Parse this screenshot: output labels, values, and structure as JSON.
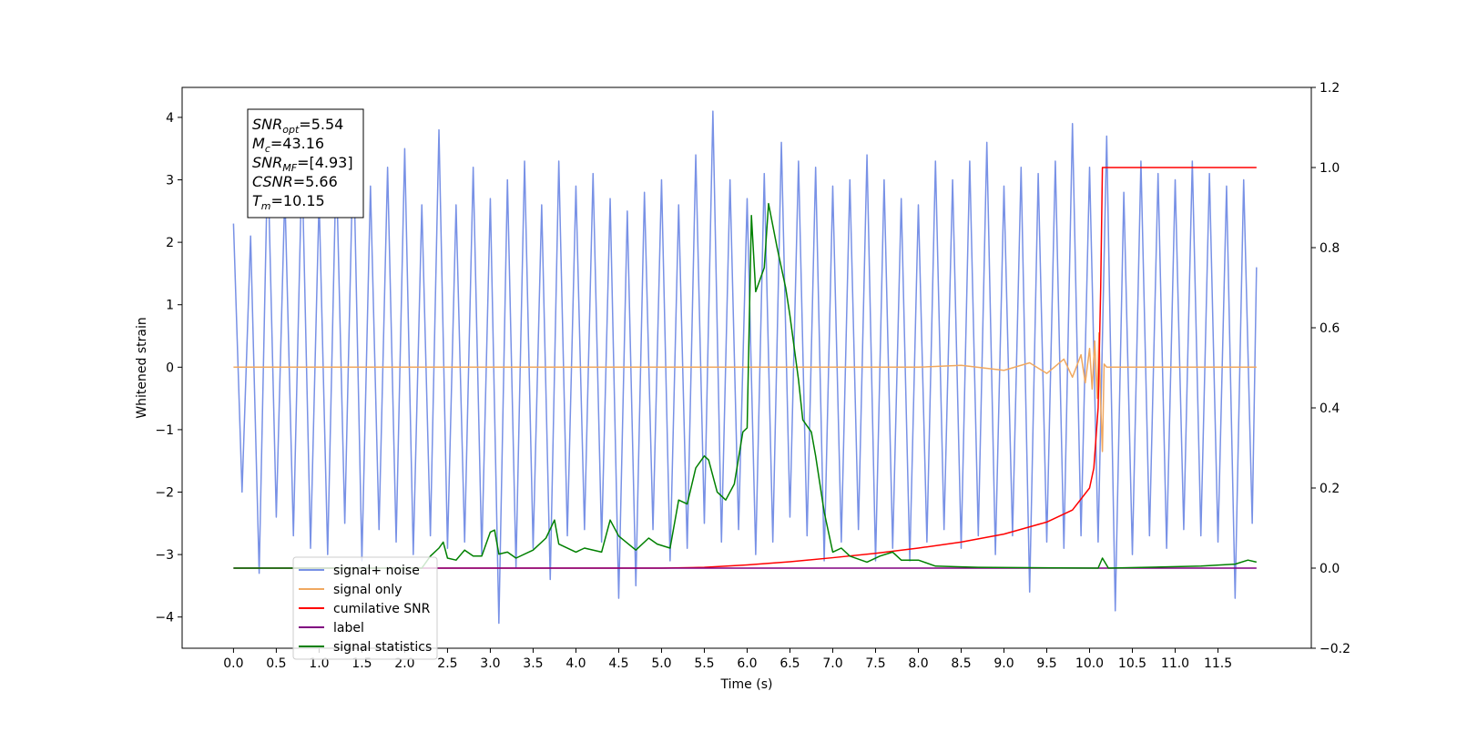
{
  "chart_data": {
    "type": "line",
    "xlabel": "Time (s)",
    "ylabel": "Whitened strain",
    "xlim": [
      -0.6,
      12.59
    ],
    "ylim": [
      -4.5,
      4.48
    ],
    "y2lim": [
      -0.2,
      1.2
    ],
    "xticks": [
      {
        "value": 0,
        "label": "0.0"
      },
      0.5,
      {
        "value": 1,
        "label": "1.0"
      },
      1.5,
      {
        "value": 2,
        "label": "2.0"
      },
      2.5,
      {
        "value": 3,
        "label": "3.0"
      },
      3.5,
      {
        "value": 4,
        "label": "4.0"
      },
      4.5,
      {
        "value": 5,
        "label": "5.0"
      },
      5.5,
      {
        "value": 6,
        "label": "6.0"
      },
      6.5,
      {
        "value": 7,
        "label": "7.0"
      },
      7.5,
      {
        "value": 8,
        "label": "8.0"
      },
      8.5,
      {
        "value": 9,
        "label": "9.0"
      },
      9.5,
      {
        "value": 10,
        "label": "10.0"
      },
      10.5,
      {
        "value": 11,
        "label": "11.0"
      },
      11.5
    ],
    "yticks": [
      {
        "value": -4,
        "label": "−4"
      },
      {
        "value": -3,
        "label": "−3"
      },
      {
        "value": -2,
        "label": "−2"
      },
      {
        "value": -1,
        "label": "−1"
      },
      0,
      1,
      2,
      3,
      4
    ],
    "y2ticks": [
      {
        "value": -0.2,
        "label": "−0.2"
      },
      {
        "value": 0,
        "label": "0.0"
      },
      0.2,
      0.4,
      0.6,
      0.8,
      {
        "value": 1,
        "label": "1.0"
      },
      1.2
    ],
    "annotation": [
      {
        "main": "SNR",
        "sub": "opt",
        "rest": "=5.54"
      },
      {
        "main": "M",
        "sub": "c",
        "rest": "=43.16"
      },
      {
        "main": "SNR",
        "sub": "MF",
        "rest": "=[4.93]"
      },
      {
        "main": "CSNR",
        "sub": null,
        "rest": "=5.66"
      },
      {
        "main": "T",
        "sub": "m",
        "rest": "=10.15"
      }
    ],
    "series": [
      {
        "name": "signal+ noise",
        "color": "#7891e6",
        "axis": "y",
        "x": [
          0,
          0.1,
          0.2,
          0.3,
          0.4,
          0.5,
          0.6,
          0.7,
          0.8,
          0.9,
          1,
          1.1,
          1.2,
          1.3,
          1.4,
          1.5,
          1.6,
          1.7,
          1.8,
          1.9,
          2,
          2.1,
          2.2,
          2.3,
          2.4,
          2.5,
          2.6,
          2.7,
          2.8,
          2.9,
          3,
          3.1,
          3.2,
          3.3,
          3.4,
          3.5,
          3.6,
          3.7,
          3.8,
          3.9,
          4,
          4.1,
          4.2,
          4.3,
          4.4,
          4.5,
          4.6,
          4.7,
          4.8,
          4.9,
          5,
          5.1,
          5.2,
          5.3,
          5.4,
          5.5,
          5.6,
          5.7,
          5.8,
          5.9,
          6,
          6.1,
          6.2,
          6.3,
          6.4,
          6.5,
          6.6,
          6.7,
          6.8,
          6.9,
          7,
          7.1,
          7.2,
          7.3,
          7.4,
          7.5,
          7.6,
          7.7,
          7.8,
          7.9,
          8,
          8.1,
          8.2,
          8.3,
          8.4,
          8.5,
          8.6,
          8.7,
          8.8,
          8.9,
          9,
          9.1,
          9.2,
          9.3,
          9.4,
          9.5,
          9.6,
          9.7,
          9.8,
          9.9,
          10,
          10.1,
          10.2,
          10.3,
          10.4,
          10.5,
          10.6,
          10.7,
          10.8,
          10.9,
          11,
          11.1,
          11.2,
          11.3,
          11.4,
          11.5,
          11.6,
          11.7,
          11.8,
          11.9,
          11.95
        ],
        "values": [
          2.3,
          -2.0,
          2.1,
          -3.3,
          3.4,
          -2.4,
          2.8,
          -2.7,
          3.3,
          -2.9,
          2.7,
          -3.0,
          3.3,
          -2.5,
          3.6,
          -3.1,
          2.9,
          -2.6,
          3.2,
          -2.8,
          3.5,
          -3.0,
          2.6,
          -2.7,
          3.8,
          -2.9,
          2.6,
          -2.8,
          3.2,
          -3.0,
          2.7,
          -4.1,
          3.0,
          -3.2,
          3.3,
          -2.9,
          2.6,
          -3.4,
          3.3,
          -2.7,
          2.9,
          -2.6,
          3.1,
          -2.8,
          2.7,
          -3.7,
          2.5,
          -3.5,
          2.8,
          -2.6,
          3.0,
          -3.1,
          2.6,
          -2.9,
          3.4,
          -2.5,
          4.1,
          -2.8,
          3.0,
          -2.6,
          2.7,
          -3.0,
          3.1,
          -2.8,
          3.6,
          -2.4,
          3.3,
          -2.7,
          3.2,
          -3.1,
          2.9,
          -2.8,
          3.0,
          -2.6,
          3.4,
          -3.1,
          3.0,
          -2.9,
          2.7,
          -3.1,
          2.6,
          -2.8,
          3.3,
          -2.6,
          3.0,
          -2.9,
          3.3,
          -2.7,
          3.6,
          -3.0,
          2.9,
          -2.7,
          3.2,
          -3.6,
          3.1,
          -2.8,
          3.3,
          -2.9,
          3.9,
          -2.7,
          3.2,
          -2.8,
          3.7,
          -3.9,
          2.8,
          -3.0,
          3.3,
          -2.7,
          3.1,
          -2.9,
          3.0,
          -2.6,
          3.3,
          -2.7,
          3.1,
          -2.8,
          2.9,
          -3.7,
          3.0,
          -2.5,
          1.6
        ]
      },
      {
        "name": "signal only",
        "color": "#f0a860",
        "axis": "y",
        "x": [
          0,
          8.0,
          8.5,
          9.0,
          9.3,
          9.5,
          9.7,
          9.8,
          9.9,
          9.95,
          10.0,
          10.03,
          10.06,
          10.09,
          10.11,
          10.13,
          10.15,
          10.17,
          10.2,
          11.95
        ],
        "values": [
          0,
          0,
          0.03,
          -0.05,
          0.07,
          -0.1,
          0.13,
          -0.16,
          0.2,
          -0.25,
          0.3,
          -0.35,
          0.42,
          -0.5,
          0.55,
          -0.6,
          -1.35,
          0.05,
          0,
          0
        ]
      },
      {
        "name": "cumilative SNR",
        "color": "#ff0000",
        "axis": "y2",
        "x": [
          0,
          5,
          5.5,
          6,
          6.5,
          7,
          7.5,
          8,
          8.5,
          9,
          9.5,
          9.8,
          10,
          10.05,
          10.1,
          10.13,
          10.15,
          10.2,
          11.95
        ],
        "values": [
          0,
          0,
          0.002,
          0.008,
          0.016,
          0.026,
          0.037,
          0.05,
          0.065,
          0.085,
          0.115,
          0.145,
          0.2,
          0.25,
          0.4,
          0.7,
          1.0,
          1.0,
          1.0
        ]
      },
      {
        "name": "label",
        "color": "#800080",
        "axis": "y2",
        "x": [
          0,
          11.95
        ],
        "values": [
          0,
          0
        ]
      },
      {
        "name": "signal statistics",
        "color": "#008000",
        "axis": "y2",
        "x": [
          0,
          2.2,
          2.3,
          2.4,
          2.45,
          2.5,
          2.6,
          2.7,
          2.8,
          2.9,
          3.0,
          3.05,
          3.1,
          3.2,
          3.3,
          3.5,
          3.65,
          3.75,
          3.8,
          4.0,
          4.1,
          4.3,
          4.4,
          4.5,
          4.7,
          4.85,
          4.95,
          5.1,
          5.2,
          5.3,
          5.4,
          5.5,
          5.55,
          5.65,
          5.75,
          5.85,
          5.95,
          6.0,
          6.05,
          6.1,
          6.2,
          6.25,
          6.35,
          6.45,
          6.5,
          6.6,
          6.65,
          6.75,
          6.8,
          6.9,
          7.0,
          7.1,
          7.2,
          7.4,
          7.55,
          7.7,
          7.8,
          8.0,
          8.2,
          8.5,
          8.7,
          10.1,
          10.15,
          10.22,
          11.3,
          11.7,
          11.85,
          11.95
        ],
        "values": [
          0,
          0,
          0.03,
          0.05,
          0.065,
          0.025,
          0.02,
          0.045,
          0.03,
          0.03,
          0.09,
          0.095,
          0.035,
          0.04,
          0.025,
          0.045,
          0.075,
          0.12,
          0.06,
          0.04,
          0.05,
          0.04,
          0.12,
          0.08,
          0.045,
          0.075,
          0.06,
          0.05,
          0.17,
          0.16,
          0.25,
          0.28,
          0.27,
          0.19,
          0.17,
          0.21,
          0.34,
          0.35,
          0.88,
          0.69,
          0.75,
          0.91,
          0.8,
          0.7,
          0.63,
          0.47,
          0.37,
          0.34,
          0.28,
          0.14,
          0.04,
          0.05,
          0.03,
          0.015,
          0.03,
          0.04,
          0.02,
          0.02,
          0.005,
          0.003,
          0.002,
          0,
          0.025,
          0,
          0.005,
          0.01,
          0.02,
          0.015
        ]
      }
    ]
  }
}
